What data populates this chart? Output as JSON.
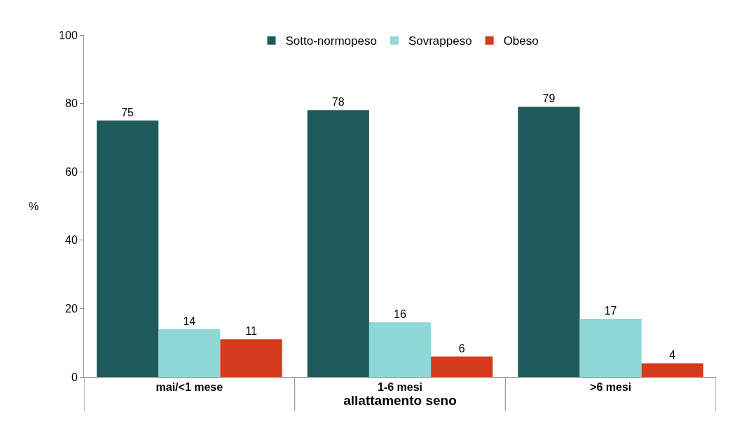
{
  "chart_data": {
    "type": "bar",
    "ylabel": "%",
    "xlabel": "allattamento seno",
    "categories": [
      "mai/<1 mese",
      "1-6 mesi",
      ">6 mesi"
    ],
    "series": [
      {
        "name": "Sotto-normopeso",
        "color": "#1f5a5a",
        "values": [
          75,
          78,
          79
        ]
      },
      {
        "name": "Sovrappeso",
        "color": "#8ed8d8",
        "values": [
          14,
          16,
          17
        ]
      },
      {
        "name": "Obeso",
        "color": "#d43a1e",
        "values": [
          11,
          6,
          4
        ]
      }
    ],
    "ylim": [
      0,
      100
    ],
    "yticks": [
      0,
      20,
      40,
      60,
      80,
      100
    ],
    "data_labels": true,
    "legend": "top"
  }
}
